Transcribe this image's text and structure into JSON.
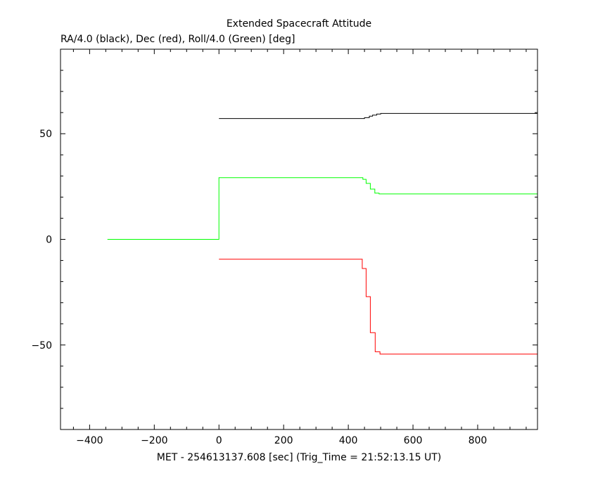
{
  "chart_data": {
    "type": "line",
    "title": "Extended Spacecraft Attitude",
    "subtitle": "RA/4.0 (black), Dec (red), Roll/4.0 (Green) [deg]",
    "xlabel": "MET - 254613137.608 [sec] (Trig_Time = 21:52:13.15 UT)",
    "ylabel": "",
    "xlim": [
      -490,
      985
    ],
    "ylim": [
      -90,
      90
    ],
    "xticks": [
      -400,
      -200,
      0,
      200,
      400,
      600,
      800
    ],
    "yticks": [
      -50,
      0,
      50
    ],
    "grid": false,
    "step": true,
    "series": [
      {
        "color": "#000000",
        "points": [
          [
            0,
            57.2
          ],
          [
            436,
            57.2
          ],
          [
            450,
            57.6
          ],
          [
            465,
            58.3
          ],
          [
            475,
            58.8
          ],
          [
            488,
            59.3
          ],
          [
            500,
            59.6
          ],
          [
            985,
            59.6
          ]
        ]
      },
      {
        "color": "#ff0000",
        "points": [
          [
            0,
            -9.4
          ],
          [
            438,
            -9.4
          ],
          [
            443,
            -13.8
          ],
          [
            455,
            -27.1
          ],
          [
            468,
            -44.2
          ],
          [
            483,
            -53.2
          ],
          [
            498,
            -54.3
          ],
          [
            985,
            -54.3
          ]
        ]
      },
      {
        "color": "#00ff00",
        "points": [
          [
            -345,
            0
          ],
          [
            0,
            0
          ],
          [
            0,
            29.2
          ],
          [
            436,
            29.2
          ],
          [
            445,
            28.4
          ],
          [
            455,
            26.5
          ],
          [
            468,
            23.8
          ],
          [
            482,
            21.9
          ],
          [
            495,
            21.5
          ],
          [
            985,
            21.5
          ]
        ]
      }
    ]
  }
}
